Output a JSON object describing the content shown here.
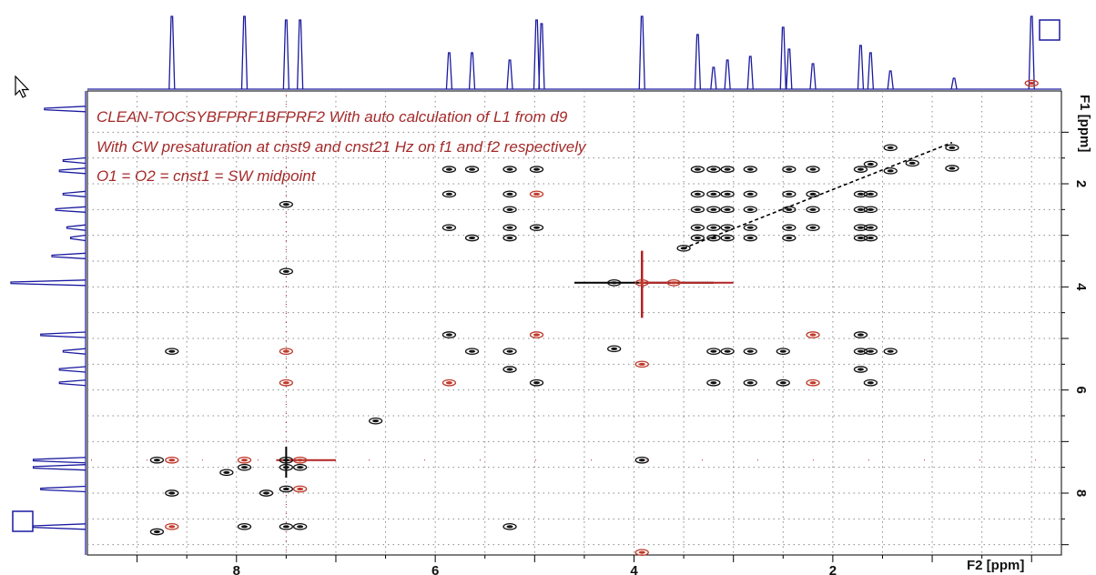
{
  "chart_data": {
    "type": "2d-nmr-contour",
    "title": "",
    "annotations": [
      "CLEAN-TOCSYBFPRF1BFPRF2  With auto calculation of L1 from d9",
      "With CW presaturation at cnst9 and cnst21 Hz on f1 and f2 respectively",
      "O1 = O2 = cnst1 = SW midpoint"
    ],
    "x_axis": {
      "label": "F2 [ppm]",
      "range": [
        9.5,
        -0.3
      ],
      "reversed": true,
      "ticks": [
        8,
        6,
        4,
        2
      ],
      "tick_labels": [
        "8",
        "6",
        "4",
        "2"
      ]
    },
    "y_axis": {
      "label": "F1 [ppm]",
      "range": [
        0.2,
        9.2
      ],
      "reversed": true,
      "position": "right",
      "ticks": [
        2,
        4,
        6,
        8
      ],
      "tick_labels": [
        "2",
        "4",
        "6",
        "8"
      ]
    },
    "grid": "dotted",
    "projection_peaks_f2": [
      {
        "ppm": 8.65,
        "height": 1.0
      },
      {
        "ppm": 7.92,
        "height": 1.0
      },
      {
        "ppm": 7.5,
        "height": 0.95
      },
      {
        "ppm": 7.36,
        "height": 0.95
      },
      {
        "ppm": 5.86,
        "height": 0.5
      },
      {
        "ppm": 5.63,
        "height": 0.5
      },
      {
        "ppm": 5.25,
        "height": 0.4
      },
      {
        "ppm": 4.98,
        "height": 0.95
      },
      {
        "ppm": 4.93,
        "height": 0.9
      },
      {
        "ppm": 3.92,
        "height": 1.0
      },
      {
        "ppm": 3.36,
        "height": 0.75
      },
      {
        "ppm": 3.2,
        "height": 0.3
      },
      {
        "ppm": 3.06,
        "height": 0.4
      },
      {
        "ppm": 2.83,
        "height": 0.45
      },
      {
        "ppm": 2.5,
        "height": 0.85
      },
      {
        "ppm": 2.44,
        "height": 0.55
      },
      {
        "ppm": 2.2,
        "height": 0.35
      },
      {
        "ppm": 1.72,
        "height": 0.6
      },
      {
        "ppm": 1.62,
        "height": 0.5
      },
      {
        "ppm": 1.42,
        "height": 0.25
      },
      {
        "ppm": 0.78,
        "height": 0.15
      },
      {
        "ppm": 0.0,
        "height": 1.0
      }
    ],
    "projection_peaks_f1": [
      {
        "ppm": 0.55,
        "height": 0.55
      },
      {
        "ppm": 1.55,
        "height": 0.3
      },
      {
        "ppm": 1.75,
        "height": 0.35
      },
      {
        "ppm": 2.2,
        "height": 0.3
      },
      {
        "ppm": 2.5,
        "height": 0.4
      },
      {
        "ppm": 2.85,
        "height": 0.25
      },
      {
        "ppm": 3.05,
        "height": 0.2
      },
      {
        "ppm": 3.4,
        "height": 0.45
      },
      {
        "ppm": 3.92,
        "height": 1.0
      },
      {
        "ppm": 4.93,
        "height": 0.6
      },
      {
        "ppm": 5.25,
        "height": 0.3
      },
      {
        "ppm": 5.6,
        "height": 0.35
      },
      {
        "ppm": 5.86,
        "height": 0.35
      },
      {
        "ppm": 7.36,
        "height": 0.7
      },
      {
        "ppm": 7.5,
        "height": 0.7
      },
      {
        "ppm": 7.92,
        "height": 0.6
      },
      {
        "ppm": 8.65,
        "height": 0.7
      }
    ],
    "contour_peaks": [
      {
        "f2": 0.0,
        "f1": 0.05,
        "color": "red"
      },
      {
        "f2": 0.8,
        "f1": 1.3,
        "color": "black"
      },
      {
        "f2": 0.8,
        "f1": 1.7,
        "color": "black"
      },
      {
        "f2": 1.42,
        "f1": 1.3,
        "color": "black"
      },
      {
        "f2": 1.2,
        "f1": 1.6,
        "color": "black"
      },
      {
        "f2": 1.72,
        "f1": 1.72,
        "color": "black"
      },
      {
        "f2": 1.62,
        "f1": 1.62,
        "color": "black"
      },
      {
        "f2": 1.72,
        "f1": 2.2,
        "color": "black"
      },
      {
        "f2": 1.72,
        "f1": 2.5,
        "color": "black"
      },
      {
        "f2": 1.72,
        "f1": 2.85,
        "color": "black"
      },
      {
        "f2": 1.72,
        "f1": 3.05,
        "color": "black"
      },
      {
        "f2": 1.62,
        "f1": 2.2,
        "color": "black"
      },
      {
        "f2": 1.62,
        "f1": 2.5,
        "color": "black"
      },
      {
        "f2": 1.62,
        "f1": 2.85,
        "color": "black"
      },
      {
        "f2": 1.62,
        "f1": 3.05,
        "color": "black"
      },
      {
        "f2": 1.42,
        "f1": 1.75,
        "color": "black"
      },
      {
        "f2": 2.2,
        "f1": 1.72,
        "color": "black"
      },
      {
        "f2": 2.2,
        "f1": 2.2,
        "color": "black"
      },
      {
        "f2": 2.2,
        "f1": 2.5,
        "color": "black"
      },
      {
        "f2": 2.2,
        "f1": 2.85,
        "color": "black"
      },
      {
        "f2": 2.44,
        "f1": 1.72,
        "color": "black"
      },
      {
        "f2": 2.44,
        "f1": 2.2,
        "color": "black"
      },
      {
        "f2": 2.44,
        "f1": 2.5,
        "color": "black"
      },
      {
        "f2": 2.44,
        "f1": 2.85,
        "color": "black"
      },
      {
        "f2": 2.44,
        "f1": 3.05,
        "color": "black"
      },
      {
        "f2": 2.83,
        "f1": 1.72,
        "color": "black"
      },
      {
        "f2": 2.83,
        "f1": 2.2,
        "color": "black"
      },
      {
        "f2": 2.83,
        "f1": 2.5,
        "color": "black"
      },
      {
        "f2": 2.83,
        "f1": 2.85,
        "color": "black"
      },
      {
        "f2": 2.83,
        "f1": 3.05,
        "color": "black"
      },
      {
        "f2": 3.06,
        "f1": 1.72,
        "color": "black"
      },
      {
        "f2": 3.06,
        "f1": 2.2,
        "color": "black"
      },
      {
        "f2": 3.06,
        "f1": 2.5,
        "color": "black"
      },
      {
        "f2": 3.06,
        "f1": 2.85,
        "color": "black"
      },
      {
        "f2": 3.06,
        "f1": 3.05,
        "color": "black"
      },
      {
        "f2": 3.2,
        "f1": 1.72,
        "color": "black"
      },
      {
        "f2": 3.2,
        "f1": 2.2,
        "color": "black"
      },
      {
        "f2": 3.2,
        "f1": 2.5,
        "color": "black"
      },
      {
        "f2": 3.2,
        "f1": 2.85,
        "color": "black"
      },
      {
        "f2": 3.2,
        "f1": 3.05,
        "color": "black"
      },
      {
        "f2": 3.36,
        "f1": 1.72,
        "color": "black"
      },
      {
        "f2": 3.36,
        "f1": 2.2,
        "color": "black"
      },
      {
        "f2": 3.36,
        "f1": 2.5,
        "color": "black"
      },
      {
        "f2": 3.36,
        "f1": 2.85,
        "color": "black"
      },
      {
        "f2": 3.36,
        "f1": 3.05,
        "color": "black"
      },
      {
        "f2": 3.5,
        "f1": 3.25,
        "color": "black"
      },
      {
        "f2": 3.92,
        "f1": 3.92,
        "color": "red"
      },
      {
        "f2": 4.2,
        "f1": 3.92,
        "color": "black"
      },
      {
        "f2": 3.6,
        "f1": 3.92,
        "color": "red"
      },
      {
        "f2": 3.92,
        "f1": 5.5,
        "color": "red"
      },
      {
        "f2": 5.86,
        "f1": 1.72,
        "color": "black"
      },
      {
        "f2": 5.86,
        "f1": 2.2,
        "color": "black"
      },
      {
        "f2": 5.86,
        "f1": 2.85,
        "color": "black"
      },
      {
        "f2": 5.86,
        "f1": 4.93,
        "color": "black"
      },
      {
        "f2": 5.86,
        "f1": 5.86,
        "color": "red"
      },
      {
        "f2": 5.63,
        "f1": 1.72,
        "color": "black"
      },
      {
        "f2": 5.63,
        "f1": 3.05,
        "color": "black"
      },
      {
        "f2": 5.63,
        "f1": 5.25,
        "color": "black"
      },
      {
        "f2": 5.25,
        "f1": 1.72,
        "color": "black"
      },
      {
        "f2": 5.25,
        "f1": 2.2,
        "color": "black"
      },
      {
        "f2": 5.25,
        "f1": 2.5,
        "color": "black"
      },
      {
        "f2": 5.25,
        "f1": 2.85,
        "color": "black"
      },
      {
        "f2": 5.25,
        "f1": 3.05,
        "color": "black"
      },
      {
        "f2": 5.25,
        "f1": 5.25,
        "color": "black"
      },
      {
        "f2": 5.25,
        "f1": 5.6,
        "color": "black"
      },
      {
        "f2": 4.98,
        "f1": 1.72,
        "color": "black"
      },
      {
        "f2": 4.98,
        "f1": 2.2,
        "color": "red"
      },
      {
        "f2": 4.98,
        "f1": 2.85,
        "color": "black"
      },
      {
        "f2": 4.98,
        "f1": 4.93,
        "color": "red"
      },
      {
        "f2": 4.98,
        "f1": 5.86,
        "color": "black"
      },
      {
        "f2": 2.83,
        "f1": 5.25,
        "color": "black"
      },
      {
        "f2": 2.83,
        "f1": 5.86,
        "color": "black"
      },
      {
        "f2": 2.5,
        "f1": 5.25,
        "color": "black"
      },
      {
        "f2": 2.5,
        "f1": 5.86,
        "color": "black"
      },
      {
        "f2": 2.2,
        "f1": 4.93,
        "color": "red"
      },
      {
        "f2": 2.2,
        "f1": 5.86,
        "color": "red"
      },
      {
        "f2": 3.2,
        "f1": 5.25,
        "color": "black"
      },
      {
        "f2": 3.2,
        "f1": 5.86,
        "color": "black"
      },
      {
        "f2": 3.06,
        "f1": 5.25,
        "color": "black"
      },
      {
        "f2": 1.72,
        "f1": 4.93,
        "color": "black"
      },
      {
        "f2": 1.72,
        "f1": 5.25,
        "color": "black"
      },
      {
        "f2": 1.72,
        "f1": 5.6,
        "color": "black"
      },
      {
        "f2": 1.62,
        "f1": 5.25,
        "color": "black"
      },
      {
        "f2": 1.62,
        "f1": 5.86,
        "color": "black"
      },
      {
        "f2": 1.42,
        "f1": 5.25,
        "color": "black"
      },
      {
        "f2": 8.65,
        "f1": 7.36,
        "color": "red"
      },
      {
        "f2": 8.65,
        "f1": 8.65,
        "color": "red"
      },
      {
        "f2": 8.65,
        "f1": 5.25,
        "color": "black"
      },
      {
        "f2": 8.65,
        "f1": 8.0,
        "color": "black"
      },
      {
        "f2": 8.8,
        "f1": 8.75,
        "color": "black"
      },
      {
        "f2": 8.8,
        "f1": 7.36,
        "color": "black"
      },
      {
        "f2": 7.92,
        "f1": 7.36,
        "color": "red"
      },
      {
        "f2": 7.92,
        "f1": 7.5,
        "color": "black"
      },
      {
        "f2": 7.92,
        "f1": 8.65,
        "color": "black"
      },
      {
        "f2": 8.1,
        "f1": 7.6,
        "color": "black"
      },
      {
        "f2": 7.5,
        "f1": 7.36,
        "color": "black"
      },
      {
        "f2": 7.5,
        "f1": 7.92,
        "color": "black"
      },
      {
        "f2": 7.5,
        "f1": 8.65,
        "color": "black"
      },
      {
        "f2": 7.5,
        "f1": 7.5,
        "color": "black"
      },
      {
        "f2": 7.36,
        "f1": 7.36,
        "color": "red"
      },
      {
        "f2": 7.36,
        "f1": 7.92,
        "color": "red"
      },
      {
        "f2": 7.36,
        "f1": 7.5,
        "color": "black"
      },
      {
        "f2": 7.36,
        "f1": 8.65,
        "color": "black"
      },
      {
        "f2": 7.7,
        "f1": 8.0,
        "color": "black"
      },
      {
        "f2": 6.6,
        "f1": 6.6,
        "color": "black"
      },
      {
        "f2": 3.92,
        "f1": 7.36,
        "color": "black"
      },
      {
        "f2": 3.92,
        "f1": 9.15,
        "color": "red"
      },
      {
        "f2": 4.2,
        "f1": 5.2,
        "color": "black"
      },
      {
        "f2": 5.25,
        "f1": 8.65,
        "color": "black"
      },
      {
        "f2": 7.5,
        "f1": 2.4,
        "color": "black"
      },
      {
        "f2": 7.5,
        "f1": 3.7,
        "color": "black"
      },
      {
        "f2": 7.5,
        "f1": 5.25,
        "color": "red"
      },
      {
        "f2": 7.5,
        "f1": 5.86,
        "color": "red"
      }
    ],
    "t1_noise_f2": [
      7.5,
      3.92
    ],
    "diagonal_noise_f1": [
      7.36,
      7.5
    ]
  }
}
